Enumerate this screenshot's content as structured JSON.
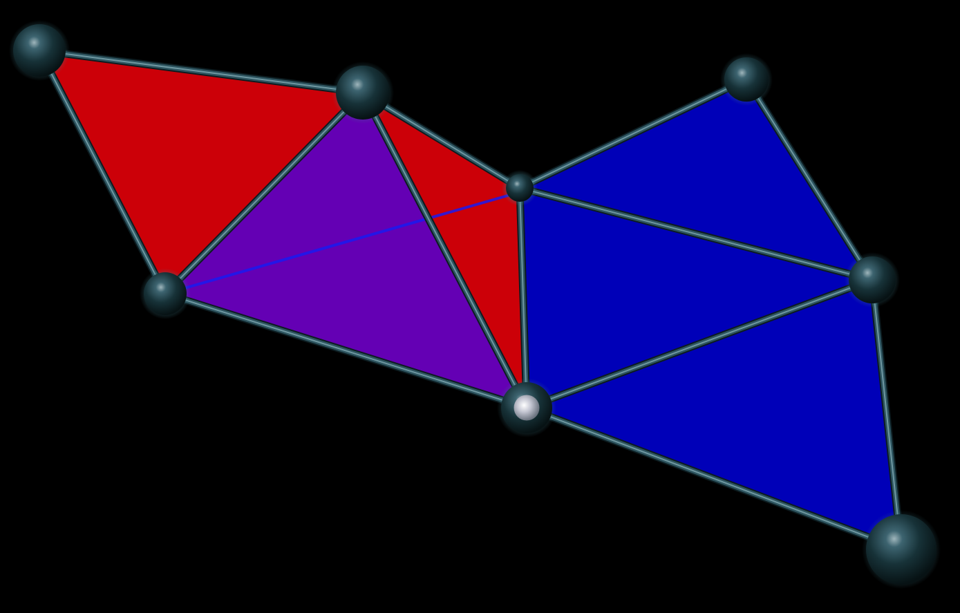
{
  "diagram": {
    "type": "triangle-mesh",
    "colors": {
      "background": "#000000",
      "red_face": "#cc0008",
      "purple_face": "#6400b4",
      "blue_face": "#0000b8",
      "edge": "#2e5560",
      "node": "#173238",
      "highlight_node": "#c8c8d4"
    },
    "faces": [
      {
        "id": "f1",
        "color": "red"
      },
      {
        "id": "f2",
        "color": "purple"
      },
      {
        "id": "f3",
        "color": "purple"
      },
      {
        "id": "f4",
        "color": "red"
      },
      {
        "id": "f5",
        "color": "red"
      },
      {
        "id": "f6",
        "color": "blue"
      },
      {
        "id": "f7",
        "color": "blue"
      },
      {
        "id": "f8",
        "color": "blue"
      },
      {
        "id": "f9",
        "color": "blue"
      }
    ],
    "nodes": [
      {
        "id": "n1",
        "highlighted": false
      },
      {
        "id": "n2",
        "highlighted": false
      },
      {
        "id": "n3",
        "highlighted": false
      },
      {
        "id": "n4",
        "highlighted": false
      },
      {
        "id": "n5",
        "highlighted": false
      },
      {
        "id": "n6",
        "highlighted": true
      },
      {
        "id": "n7",
        "highlighted": false
      },
      {
        "id": "n8",
        "highlighted": false
      },
      {
        "id": "n9",
        "highlighted": false
      }
    ]
  }
}
